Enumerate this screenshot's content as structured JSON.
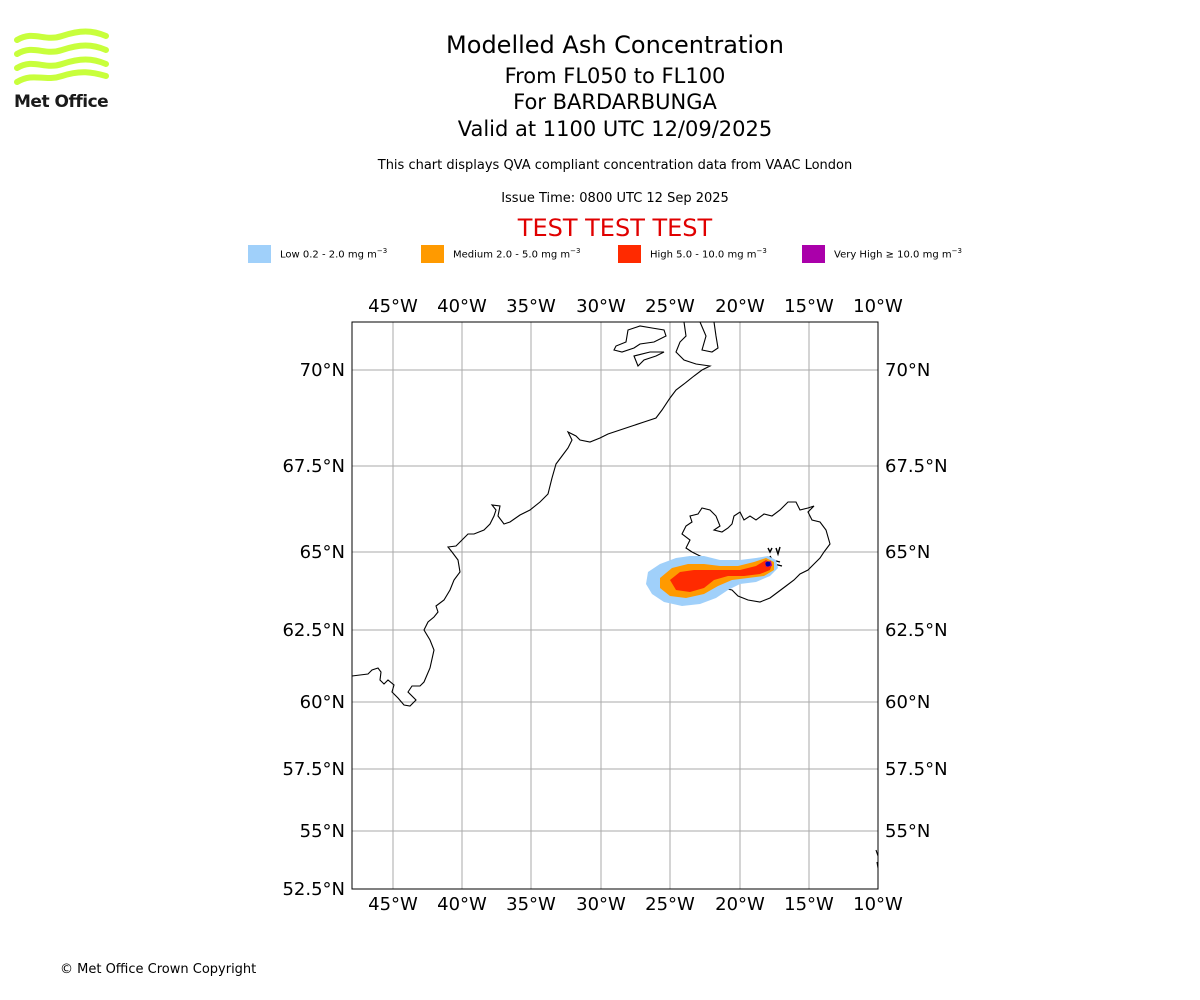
{
  "header": {
    "title": "Modelled Ash Concentration",
    "levels": "From FL050 to FL100",
    "volcano": "For BARDARBUNGA",
    "valid": "Valid at 1100 UTC 12/09/2025",
    "note": "This chart displays QVA compliant concentration data from VAAC London",
    "issue": "Issue Time: 0800 UTC 12 Sep 2025",
    "test": "TEST TEST TEST"
  },
  "logo": {
    "text": "Met Office",
    "color": "#c8ff3c"
  },
  "legend": [
    {
      "prefix": "Low 0.2 - 2.0 mg m",
      "sup": "−3",
      "color": "#a0d0fa"
    },
    {
      "prefix": "Medium 2.0 - 5.0 mg m",
      "sup": "−3",
      "color": "#ff9a00"
    },
    {
      "prefix": "High 5.0 - 10.0 mg m",
      "sup": "−3",
      "color": "#ff2a00"
    },
    {
      "prefix": "Very High  ≥  10.0 mg m",
      "sup": "−3",
      "color": "#aa00aa"
    }
  ],
  "map": {
    "lon_ticks": [
      "45°W",
      "40°W",
      "35°W",
      "30°W",
      "25°W",
      "20°W",
      "15°W",
      "10°W"
    ],
    "lat_ticks": [
      "70°N",
      "67.5°N",
      "65°N",
      "62.5°N",
      "60°N",
      "57.5°N",
      "55°N",
      "52.5°N"
    ],
    "grid_color": "#aaaaaa"
  },
  "footer": {
    "copyright": "© Met Office Crown Copyright"
  }
}
